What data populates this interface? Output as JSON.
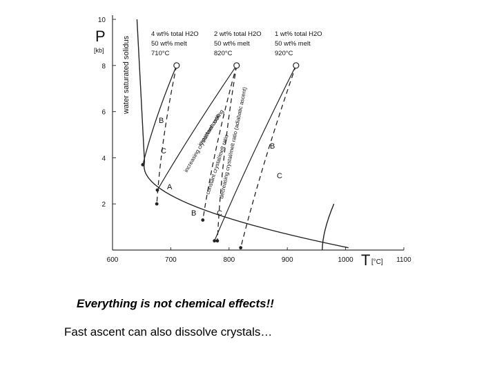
{
  "chart_data": {
    "type": "line",
    "xlabel": "T",
    "xunit": "[°C]",
    "ylabel": "P",
    "yunit": "[kb]",
    "xlim": [
      600,
      1100
    ],
    "ylim": [
      0,
      10
    ],
    "xticks": [
      "600",
      "700",
      "800",
      "900",
      "1000",
      "1100"
    ],
    "yticks": [
      "2",
      "4",
      "6",
      "8",
      "10"
    ],
    "grid": false,
    "legend": "none",
    "annotations": {
      "solidus": "water saturated solidus",
      "col1": [
        "4 wt% total H2O",
        "50 wt% melt",
        "710°C"
      ],
      "col2": [
        "2 wt% total H2O",
        "50 wt% melt",
        "820°C"
      ],
      "col3": [
        "1 wt% total H2O",
        "50 wt% melt",
        "920°C"
      ],
      "path_labels": [
        "important cooling",
        "increasing crystal/melt ratio",
        "constant crystal/melt ratio",
        "decreasing crystal/melt ratio (adiabatic ascent)"
      ],
      "letters": [
        "A",
        "B",
        "C"
      ]
    },
    "series": [
      {
        "values": [
          [
            1005,
            0.1
          ],
          [
            655,
            3.8
          ],
          [
            642,
            10.0
          ]
        ]
      },
      {
        "values": [
          [
            960,
            0.0
          ],
          [
            980,
            2.0
          ]
        ]
      },
      {
        "values": [
          [
            710,
            8.0
          ],
          [
            652,
            3.7
          ]
        ]
      },
      {
        "values": [
          [
            710,
            8.0
          ],
          [
            676,
            2.0
          ]
        ]
      },
      {
        "values": [
          [
            813,
            8.0
          ],
          [
            677,
            2.6
          ]
        ]
      },
      {
        "values": [
          [
            813,
            8.0
          ],
          [
            755,
            1.3
          ]
        ]
      },
      {
        "values": [
          [
            813,
            8.0
          ],
          [
            780,
            0.4
          ]
        ]
      },
      {
        "values": [
          [
            915,
            8.0
          ],
          [
            775,
            0.4
          ]
        ]
      },
      {
        "values": [
          [
            915,
            8.0
          ],
          [
            820,
            0.1
          ]
        ]
      }
    ]
  },
  "captions": {
    "line1": "Everything is not chemical effects!!",
    "line2": "Fast ascent can also dissolve crystals…"
  }
}
